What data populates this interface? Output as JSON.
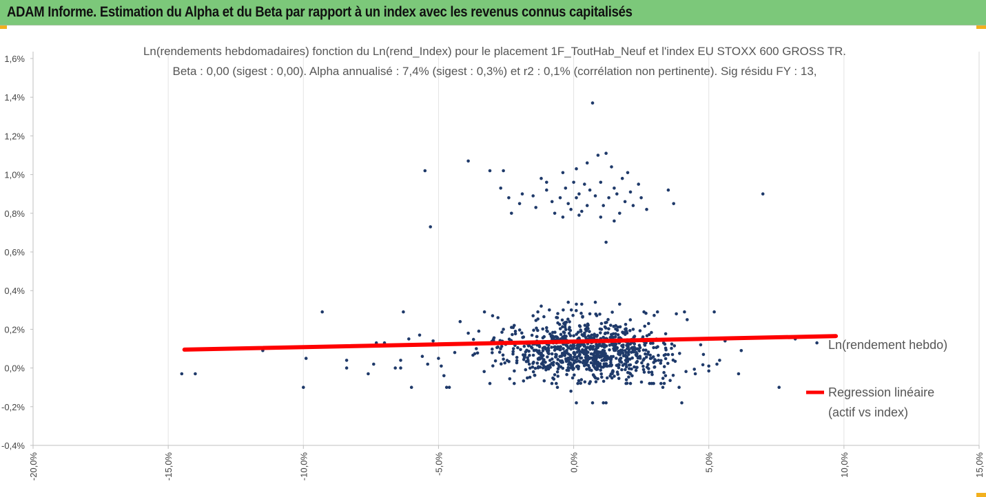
{
  "banner": {
    "title": "ADAM Informe. Estimation du Alpha et du Beta par rapport à un index avec les revenus connus capitalisés"
  },
  "colors": {
    "banner_bg": "#7cc87a",
    "points": "#1f3a6a",
    "regression": "#ff0000",
    "corner_marks": "#f2b01e"
  },
  "chart_data": {
    "type": "scatter",
    "title": "Ln(rendements hebdomadaires) fonction du Ln(rend_Index) pour le placement 1F_ToutHab_Neuf et l'index EU STOXX 600 GROSS TR.",
    "subtitle": "Beta : 0,00 (sigest : 0,00). Alpha annualisé : 7,4% (sigest : 0,3%) et r2 : 0,1% (corrélation non pertinente). Sig résidu FY : 13,",
    "xlabel": "",
    "ylabel": "",
    "xlim": [
      -20,
      15
    ],
    "ylim": [
      -0.4,
      1.6
    ],
    "x_ticks": [
      "-20,0%",
      "-15,0%",
      "-10,0%",
      "-5,0%",
      "0,0%",
      "5,0%",
      "10,0%",
      "15,0%"
    ],
    "y_ticks": [
      "-0,4%",
      "-0,2%",
      "0,0%",
      "0,2%",
      "0,4%",
      "0,6%",
      "0,8%",
      "1,0%",
      "1,2%",
      "1,4%",
      "1,6%"
    ],
    "grid": "vertical",
    "legend_placement": "right",
    "series": [
      {
        "name": "Ln(rendement hebdo)",
        "type": "scatter",
        "points": [
          [
            -14.5,
            -0.03
          ],
          [
            -14.0,
            -0.03
          ],
          [
            -11.5,
            0.09
          ],
          [
            -10.0,
            -0.1
          ],
          [
            -9.9,
            0.05
          ],
          [
            -9.3,
            0.29
          ],
          [
            -8.4,
            0.0
          ],
          [
            -8.4,
            0.04
          ],
          [
            -7.6,
            -0.03
          ],
          [
            -7.4,
            0.02
          ],
          [
            -7.3,
            0.13
          ],
          [
            -7.0,
            0.13
          ],
          [
            -6.6,
            0.0
          ],
          [
            -6.4,
            0.0
          ],
          [
            -6.4,
            0.04
          ],
          [
            -6.3,
            0.29
          ],
          [
            -6.1,
            0.15
          ],
          [
            -6.0,
            -0.1
          ],
          [
            -5.9,
            0.12
          ],
          [
            -5.7,
            0.17
          ],
          [
            -5.6,
            0.06
          ],
          [
            -5.4,
            0.02
          ],
          [
            -5.2,
            0.14
          ],
          [
            -5.0,
            0.05
          ],
          [
            -4.9,
            0.01
          ],
          [
            -4.8,
            -0.04
          ],
          [
            -4.7,
            -0.1
          ],
          [
            -4.6,
            -0.1
          ],
          [
            -4.4,
            0.08
          ],
          [
            -4.2,
            0.24
          ],
          [
            -3.9,
            0.18
          ],
          [
            -3.6,
            0.1
          ],
          [
            -3.3,
            0.29
          ],
          [
            -3.0,
            0.27
          ],
          [
            -2.8,
            0.26
          ],
          [
            -2.6,
            0.2
          ],
          [
            -2.3,
            0.21
          ],
          [
            -2.2,
            0.22
          ],
          [
            -1.5,
            0.27
          ],
          [
            -1.2,
            0.32
          ],
          [
            -0.9,
            0.3
          ],
          [
            -0.6,
            0.26
          ],
          [
            -0.2,
            0.34
          ],
          [
            0.1,
            0.33
          ],
          [
            0.3,
            0.33
          ],
          [
            0.6,
            0.28
          ],
          [
            0.8,
            0.34
          ],
          [
            1.7,
            0.33
          ],
          [
            2.2,
            0.2
          ],
          [
            2.6,
            0.29
          ],
          [
            3.1,
            0.29
          ],
          [
            3.8,
            0.28
          ],
          [
            4.1,
            0.29
          ],
          [
            4.2,
            0.25
          ],
          [
            4.0,
            -0.18
          ],
          [
            3.9,
            -0.1
          ],
          [
            3.3,
            -0.1
          ],
          [
            2.1,
            -0.08
          ],
          [
            1.2,
            -0.18
          ],
          [
            1.1,
            -0.18
          ],
          [
            0.7,
            -0.18
          ],
          [
            0.1,
            -0.18
          ],
          [
            -0.1,
            -0.12
          ],
          [
            -0.6,
            -0.1
          ],
          [
            -2.2,
            -0.08
          ],
          [
            -3.1,
            -0.08
          ],
          [
            4.5,
            -0.03
          ],
          [
            4.8,
            0.07
          ],
          [
            5.0,
            0.01
          ],
          [
            5.2,
            0.29
          ],
          [
            5.3,
            0.02
          ],
          [
            5.4,
            0.04
          ],
          [
            6.1,
            -0.03
          ],
          [
            6.2,
            0.09
          ],
          [
            7.6,
            -0.1
          ],
          [
            8.2,
            0.15
          ],
          [
            9.0,
            0.13
          ],
          [
            4.7,
            0.12
          ],
          [
            5.6,
            0.14
          ],
          [
            3.4,
            -0.04
          ],
          [
            -5.5,
            1.02
          ],
          [
            -5.3,
            0.73
          ],
          [
            -3.9,
            1.07
          ],
          [
            -3.1,
            1.02
          ],
          [
            -2.6,
            1.02
          ],
          [
            -2.7,
            0.93
          ],
          [
            -2.4,
            0.88
          ],
          [
            -2.3,
            0.8
          ],
          [
            -2.0,
            0.85
          ],
          [
            -1.9,
            0.9
          ],
          [
            -1.5,
            0.89
          ],
          [
            -1.4,
            0.83
          ],
          [
            -1.2,
            0.98
          ],
          [
            -1.0,
            0.96
          ],
          [
            -1.0,
            0.92
          ],
          [
            -0.8,
            0.86
          ],
          [
            -0.7,
            0.8
          ],
          [
            -0.5,
            0.88
          ],
          [
            -0.4,
            1.01
          ],
          [
            -0.3,
            0.93
          ],
          [
            -0.2,
            0.85
          ],
          [
            -0.1,
            0.82
          ],
          [
            0.0,
            0.96
          ],
          [
            0.1,
            0.88
          ],
          [
            0.1,
            1.03
          ],
          [
            0.2,
            0.9
          ],
          [
            0.3,
            0.81
          ],
          [
            0.4,
            0.95
          ],
          [
            0.5,
            1.06
          ],
          [
            0.6,
            0.92
          ],
          [
            0.7,
            1.37
          ],
          [
            0.8,
            0.89
          ],
          [
            0.9,
            1.1
          ],
          [
            1.0,
            0.96
          ],
          [
            1.1,
            0.84
          ],
          [
            1.2,
            1.11
          ],
          [
            1.2,
            0.65
          ],
          [
            1.3,
            0.88
          ],
          [
            1.4,
            1.04
          ],
          [
            1.5,
            0.93
          ],
          [
            1.6,
            0.9
          ],
          [
            1.7,
            0.8
          ],
          [
            1.8,
            0.98
          ],
          [
            1.9,
            0.86
          ],
          [
            2.0,
            1.01
          ],
          [
            2.1,
            0.91
          ],
          [
            2.2,
            0.84
          ],
          [
            2.4,
            0.95
          ],
          [
            2.5,
            0.88
          ],
          [
            2.7,
            0.82
          ],
          [
            1.0,
            0.78
          ],
          [
            0.2,
            0.79
          ],
          [
            -0.4,
            0.78
          ],
          [
            3.5,
            0.92
          ],
          [
            3.7,
            0.85
          ],
          [
            7.0,
            0.9
          ],
          [
            1.5,
            0.76
          ],
          [
            0.5,
            0.84
          ]
        ],
        "cloud": {
          "description_count_approx": 900,
          "x_range": [
            -4.5,
            5.0
          ],
          "y_range": [
            -0.08,
            0.3
          ],
          "center": [
            0.5,
            0.09
          ]
        }
      },
      {
        "name": "Regression linéaire (actif vs index)",
        "type": "line",
        "points": [
          [
            -14.4,
            0.095
          ],
          [
            9.7,
            0.165
          ]
        ]
      }
    ]
  }
}
